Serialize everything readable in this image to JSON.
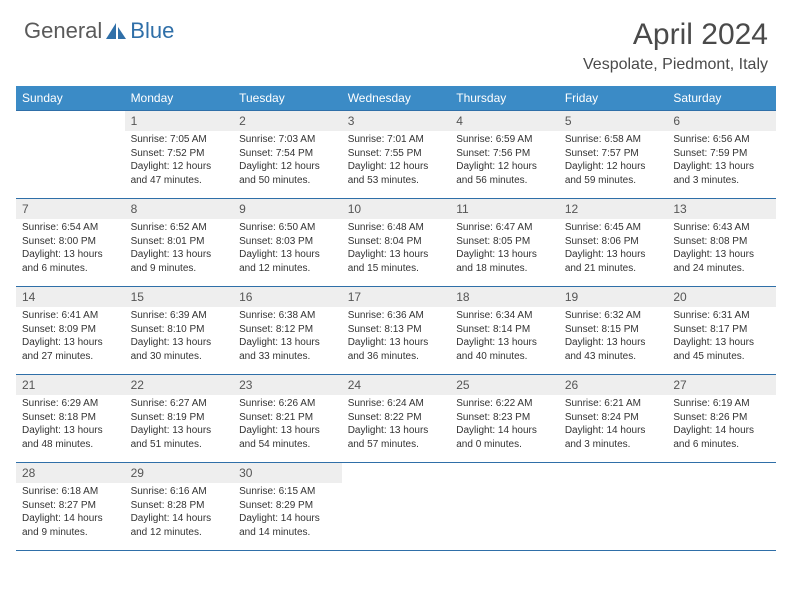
{
  "logo": {
    "general": "General",
    "blue": "Blue"
  },
  "title": "April 2024",
  "location": "Vespolate, Piedmont, Italy",
  "colors": {
    "header_bg": "#3b8bc6",
    "header_text": "#ffffff",
    "border": "#2f6fa8",
    "daynum_bg": "#eeeeee",
    "text": "#333333",
    "logo_gray": "#5a5a5a",
    "logo_blue": "#2f6fa8"
  },
  "weekdays": [
    "Sunday",
    "Monday",
    "Tuesday",
    "Wednesday",
    "Thursday",
    "Friday",
    "Saturday"
  ],
  "weeks": [
    [
      null,
      {
        "n": "1",
        "sr": "Sunrise: 7:05 AM",
        "ss": "Sunset: 7:52 PM",
        "dl": "Daylight: 12 hours and 47 minutes."
      },
      {
        "n": "2",
        "sr": "Sunrise: 7:03 AM",
        "ss": "Sunset: 7:54 PM",
        "dl": "Daylight: 12 hours and 50 minutes."
      },
      {
        "n": "3",
        "sr": "Sunrise: 7:01 AM",
        "ss": "Sunset: 7:55 PM",
        "dl": "Daylight: 12 hours and 53 minutes."
      },
      {
        "n": "4",
        "sr": "Sunrise: 6:59 AM",
        "ss": "Sunset: 7:56 PM",
        "dl": "Daylight: 12 hours and 56 minutes."
      },
      {
        "n": "5",
        "sr": "Sunrise: 6:58 AM",
        "ss": "Sunset: 7:57 PM",
        "dl": "Daylight: 12 hours and 59 minutes."
      },
      {
        "n": "6",
        "sr": "Sunrise: 6:56 AM",
        "ss": "Sunset: 7:59 PM",
        "dl": "Daylight: 13 hours and 3 minutes."
      }
    ],
    [
      {
        "n": "7",
        "sr": "Sunrise: 6:54 AM",
        "ss": "Sunset: 8:00 PM",
        "dl": "Daylight: 13 hours and 6 minutes."
      },
      {
        "n": "8",
        "sr": "Sunrise: 6:52 AM",
        "ss": "Sunset: 8:01 PM",
        "dl": "Daylight: 13 hours and 9 minutes."
      },
      {
        "n": "9",
        "sr": "Sunrise: 6:50 AM",
        "ss": "Sunset: 8:03 PM",
        "dl": "Daylight: 13 hours and 12 minutes."
      },
      {
        "n": "10",
        "sr": "Sunrise: 6:48 AM",
        "ss": "Sunset: 8:04 PM",
        "dl": "Daylight: 13 hours and 15 minutes."
      },
      {
        "n": "11",
        "sr": "Sunrise: 6:47 AM",
        "ss": "Sunset: 8:05 PM",
        "dl": "Daylight: 13 hours and 18 minutes."
      },
      {
        "n": "12",
        "sr": "Sunrise: 6:45 AM",
        "ss": "Sunset: 8:06 PM",
        "dl": "Daylight: 13 hours and 21 minutes."
      },
      {
        "n": "13",
        "sr": "Sunrise: 6:43 AM",
        "ss": "Sunset: 8:08 PM",
        "dl": "Daylight: 13 hours and 24 minutes."
      }
    ],
    [
      {
        "n": "14",
        "sr": "Sunrise: 6:41 AM",
        "ss": "Sunset: 8:09 PM",
        "dl": "Daylight: 13 hours and 27 minutes."
      },
      {
        "n": "15",
        "sr": "Sunrise: 6:39 AM",
        "ss": "Sunset: 8:10 PM",
        "dl": "Daylight: 13 hours and 30 minutes."
      },
      {
        "n": "16",
        "sr": "Sunrise: 6:38 AM",
        "ss": "Sunset: 8:12 PM",
        "dl": "Daylight: 13 hours and 33 minutes."
      },
      {
        "n": "17",
        "sr": "Sunrise: 6:36 AM",
        "ss": "Sunset: 8:13 PM",
        "dl": "Daylight: 13 hours and 36 minutes."
      },
      {
        "n": "18",
        "sr": "Sunrise: 6:34 AM",
        "ss": "Sunset: 8:14 PM",
        "dl": "Daylight: 13 hours and 40 minutes."
      },
      {
        "n": "19",
        "sr": "Sunrise: 6:32 AM",
        "ss": "Sunset: 8:15 PM",
        "dl": "Daylight: 13 hours and 43 minutes."
      },
      {
        "n": "20",
        "sr": "Sunrise: 6:31 AM",
        "ss": "Sunset: 8:17 PM",
        "dl": "Daylight: 13 hours and 45 minutes."
      }
    ],
    [
      {
        "n": "21",
        "sr": "Sunrise: 6:29 AM",
        "ss": "Sunset: 8:18 PM",
        "dl": "Daylight: 13 hours and 48 minutes."
      },
      {
        "n": "22",
        "sr": "Sunrise: 6:27 AM",
        "ss": "Sunset: 8:19 PM",
        "dl": "Daylight: 13 hours and 51 minutes."
      },
      {
        "n": "23",
        "sr": "Sunrise: 6:26 AM",
        "ss": "Sunset: 8:21 PM",
        "dl": "Daylight: 13 hours and 54 minutes."
      },
      {
        "n": "24",
        "sr": "Sunrise: 6:24 AM",
        "ss": "Sunset: 8:22 PM",
        "dl": "Daylight: 13 hours and 57 minutes."
      },
      {
        "n": "25",
        "sr": "Sunrise: 6:22 AM",
        "ss": "Sunset: 8:23 PM",
        "dl": "Daylight: 14 hours and 0 minutes."
      },
      {
        "n": "26",
        "sr": "Sunrise: 6:21 AM",
        "ss": "Sunset: 8:24 PM",
        "dl": "Daylight: 14 hours and 3 minutes."
      },
      {
        "n": "27",
        "sr": "Sunrise: 6:19 AM",
        "ss": "Sunset: 8:26 PM",
        "dl": "Daylight: 14 hours and 6 minutes."
      }
    ],
    [
      {
        "n": "28",
        "sr": "Sunrise: 6:18 AM",
        "ss": "Sunset: 8:27 PM",
        "dl": "Daylight: 14 hours and 9 minutes."
      },
      {
        "n": "29",
        "sr": "Sunrise: 6:16 AM",
        "ss": "Sunset: 8:28 PM",
        "dl": "Daylight: 14 hours and 12 minutes."
      },
      {
        "n": "30",
        "sr": "Sunrise: 6:15 AM",
        "ss": "Sunset: 8:29 PM",
        "dl": "Daylight: 14 hours and 14 minutes."
      },
      null,
      null,
      null,
      null
    ]
  ]
}
